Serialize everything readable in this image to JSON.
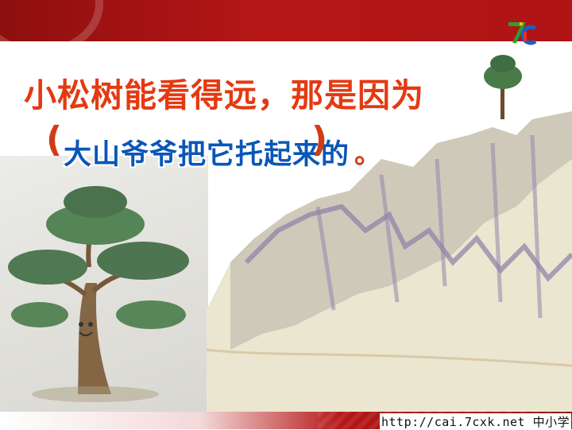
{
  "title_line1": "小松树能看得远，那是因为",
  "title_line2": "大山爷爷把它托起来的",
  "paren_open": "(",
  "paren_close": ")",
  "paren_dot": "。",
  "footer_url": "http://cai.7cxk.net 中小学",
  "colors": {
    "top_bar": "#b51616",
    "title_red": "#e43a12",
    "title_blue": "#0a56b8"
  },
  "logo_icon": "7c-logo-icon"
}
